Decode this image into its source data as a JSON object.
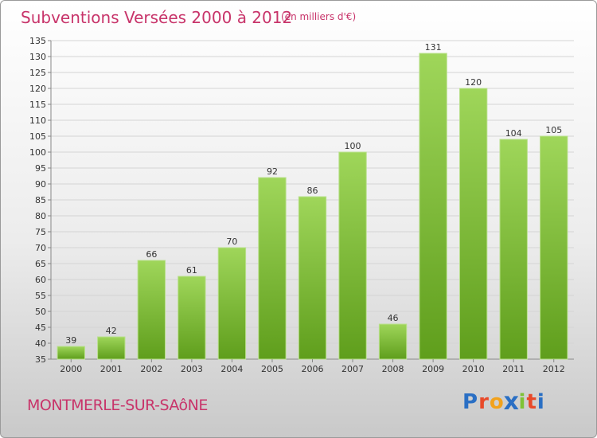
{
  "chart_data": {
    "type": "bar",
    "title": "Subventions Versées 2000 à 2012",
    "subtitle": "(en milliers d'€)",
    "categories": [
      "2000",
      "2001",
      "2002",
      "2003",
      "2004",
      "2005",
      "2006",
      "2007",
      "2008",
      "2009",
      "2010",
      "2011",
      "2012"
    ],
    "values": [
      39,
      42,
      66,
      61,
      70,
      92,
      86,
      100,
      46,
      131,
      120,
      104,
      105
    ],
    "ylim": [
      35,
      135
    ],
    "yticks": [
      35,
      40,
      45,
      50,
      55,
      60,
      65,
      70,
      75,
      80,
      85,
      90,
      95,
      100,
      105,
      110,
      115,
      120,
      125,
      130,
      135
    ],
    "grid": true,
    "bar_color": "#7fc236"
  },
  "footer": {
    "commune": "MONTMERLE-SUR-SAôNE",
    "logo_letters": [
      "P",
      "r",
      "o",
      "x",
      "i",
      "t",
      "i"
    ],
    "logo_colors": [
      "#2a6fc4",
      "#e84a2a",
      "#f2a21c",
      "#2a6fc4",
      "#7fc236",
      "#e84a2a",
      "#2a6fc4"
    ]
  }
}
